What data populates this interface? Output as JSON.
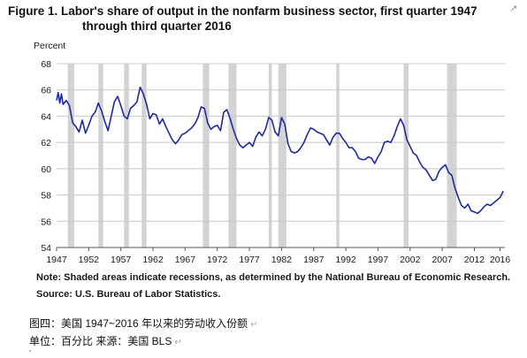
{
  "title": {
    "line1": "Figure 1. Labor's share of output in the nonfarm business sector, first quarter 1947",
    "line2": "through third quarter 2016"
  },
  "note": "Note: Shaded areas indicate recessions, as determined by the National Bureau of Economic Research.",
  "source": "Source: U.S. Bureau of Labor Statistics.",
  "caption": {
    "line1": "图四：美国 1947~2016 年以来的劳动收入份额",
    "line2": "单位：百分比 来源：美国 BLS"
  },
  "colors": {
    "line": "#1f2a9b",
    "recession": "#d3d3d3",
    "grid": "#c8c8c8",
    "text": "#1a1a1a"
  },
  "chart_data": {
    "type": "line",
    "ylabel": "Percent",
    "ylim": [
      54,
      68
    ],
    "yticks": [
      54,
      56,
      58,
      60,
      62,
      64,
      66,
      68
    ],
    "xlim": [
      1947,
      2016.75
    ],
    "xticks": [
      1947,
      1952,
      1957,
      1962,
      1967,
      1972,
      1977,
      1982,
      1987,
      1992,
      1997,
      2002,
      2007,
      2012,
      2016
    ],
    "grid": true,
    "recessions": [
      [
        1948.75,
        1949.75
      ],
      [
        1953.5,
        1954.25
      ],
      [
        1957.5,
        1958.25
      ],
      [
        1960.25,
        1961.0
      ],
      [
        1969.75,
        1970.75
      ],
      [
        1973.75,
        1975.0
      ],
      [
        1980.0,
        1980.5
      ],
      [
        1981.5,
        1982.75
      ],
      [
        1990.5,
        1991.0
      ],
      [
        2001.0,
        2001.75
      ],
      [
        2007.75,
        2009.25
      ]
    ],
    "series": [
      {
        "x": [
          1947.0,
          1947.25,
          1947.5,
          1947.75,
          1948.0,
          1948.5,
          1949.0,
          1949.5,
          1950.0,
          1950.5,
          1951.0,
          1951.5,
          1952.0,
          1952.5,
          1953.0,
          1953.5,
          1954.0,
          1954.5,
          1955.0,
          1955.5,
          1956.0,
          1956.5,
          1957.0,
          1957.5,
          1958.0,
          1958.5,
          1959.0,
          1959.5,
          1960.0,
          1960.5,
          1961.0,
          1961.5,
          1962.0,
          1962.5,
          1963.0,
          1963.5,
          1964.0,
          1964.5,
          1965.0,
          1965.5,
          1966.0,
          1966.5,
          1967.0,
          1967.5,
          1968.0,
          1968.5,
          1969.0,
          1969.5,
          1970.0,
          1970.5,
          1971.0,
          1971.5,
          1972.0,
          1972.5,
          1973.0,
          1973.5,
          1974.0,
          1974.5,
          1975.0,
          1975.5,
          1976.0,
          1976.5,
          1977.0,
          1977.5,
          1978.0,
          1978.5,
          1979.0,
          1979.5,
          1980.0,
          1980.5,
          1981.0,
          1981.5,
          1982.0,
          1982.5,
          1983.0,
          1983.5,
          1984.0,
          1984.5,
          1985.0,
          1985.5,
          1986.0,
          1986.5,
          1987.0,
          1987.5,
          1988.0,
          1988.5,
          1989.0,
          1989.5,
          1990.0,
          1990.5,
          1991.0,
          1991.5,
          1992.0,
          1992.5,
          1993.0,
          1993.5,
          1994.0,
          1994.5,
          1995.0,
          1995.5,
          1996.0,
          1996.5,
          1997.0,
          1997.5,
          1998.0,
          1998.5,
          1999.0,
          1999.5,
          2000.0,
          2000.5,
          2001.0,
          2001.5,
          2002.0,
          2002.5,
          2003.0,
          2003.5,
          2004.0,
          2004.5,
          2005.0,
          2005.5,
          2006.0,
          2006.5,
          2007.0,
          2007.5,
          2008.0,
          2008.5,
          2009.0,
          2009.5,
          2010.0,
          2010.5,
          2011.0,
          2011.5,
          2012.0,
          2012.5,
          2013.0,
          2013.5,
          2014.0,
          2014.5,
          2015.0,
          2015.5,
          2016.0,
          2016.5
        ],
        "values": [
          65.2,
          65.8,
          65.0,
          65.7,
          64.9,
          65.2,
          64.8,
          63.5,
          63.2,
          62.8,
          63.7,
          62.7,
          63.3,
          64.0,
          64.3,
          65.0,
          64.4,
          63.6,
          62.9,
          64.0,
          65.1,
          65.5,
          64.8,
          64.0,
          63.8,
          64.6,
          64.8,
          65.1,
          66.2,
          65.7,
          64.9,
          63.8,
          64.2,
          64.1,
          63.4,
          63.8,
          63.2,
          62.7,
          62.2,
          61.9,
          62.2,
          62.6,
          62.7,
          62.9,
          63.1,
          63.4,
          63.9,
          64.7,
          64.6,
          63.5,
          63.0,
          63.2,
          63.3,
          62.9,
          64.3,
          64.5,
          63.8,
          63.0,
          62.3,
          61.8,
          61.6,
          61.8,
          62.0,
          61.7,
          62.4,
          62.8,
          62.5,
          63.0,
          63.9,
          63.7,
          62.8,
          62.5,
          63.9,
          63.4,
          61.9,
          61.3,
          61.2,
          61.3,
          61.6,
          62.0,
          62.6,
          63.1,
          63.0,
          62.8,
          62.7,
          62.6,
          62.2,
          61.8,
          62.4,
          62.7,
          62.7,
          62.3,
          62.0,
          61.6,
          61.6,
          61.3,
          60.8,
          60.7,
          60.7,
          60.9,
          60.8,
          60.4,
          60.9,
          61.3,
          62.0,
          62.1,
          62.0,
          62.5,
          63.2,
          63.8,
          63.3,
          62.2,
          61.7,
          61.2,
          61.0,
          60.5,
          60.1,
          59.9,
          59.5,
          59.1,
          59.2,
          59.8,
          60.1,
          60.3,
          59.7,
          59.5,
          58.5,
          57.8,
          57.2,
          57.0,
          57.3,
          56.8,
          56.7,
          56.6,
          56.8,
          57.1,
          57.3,
          57.2,
          57.4,
          57.6,
          57.8,
          58.3
        ]
      }
    ]
  }
}
